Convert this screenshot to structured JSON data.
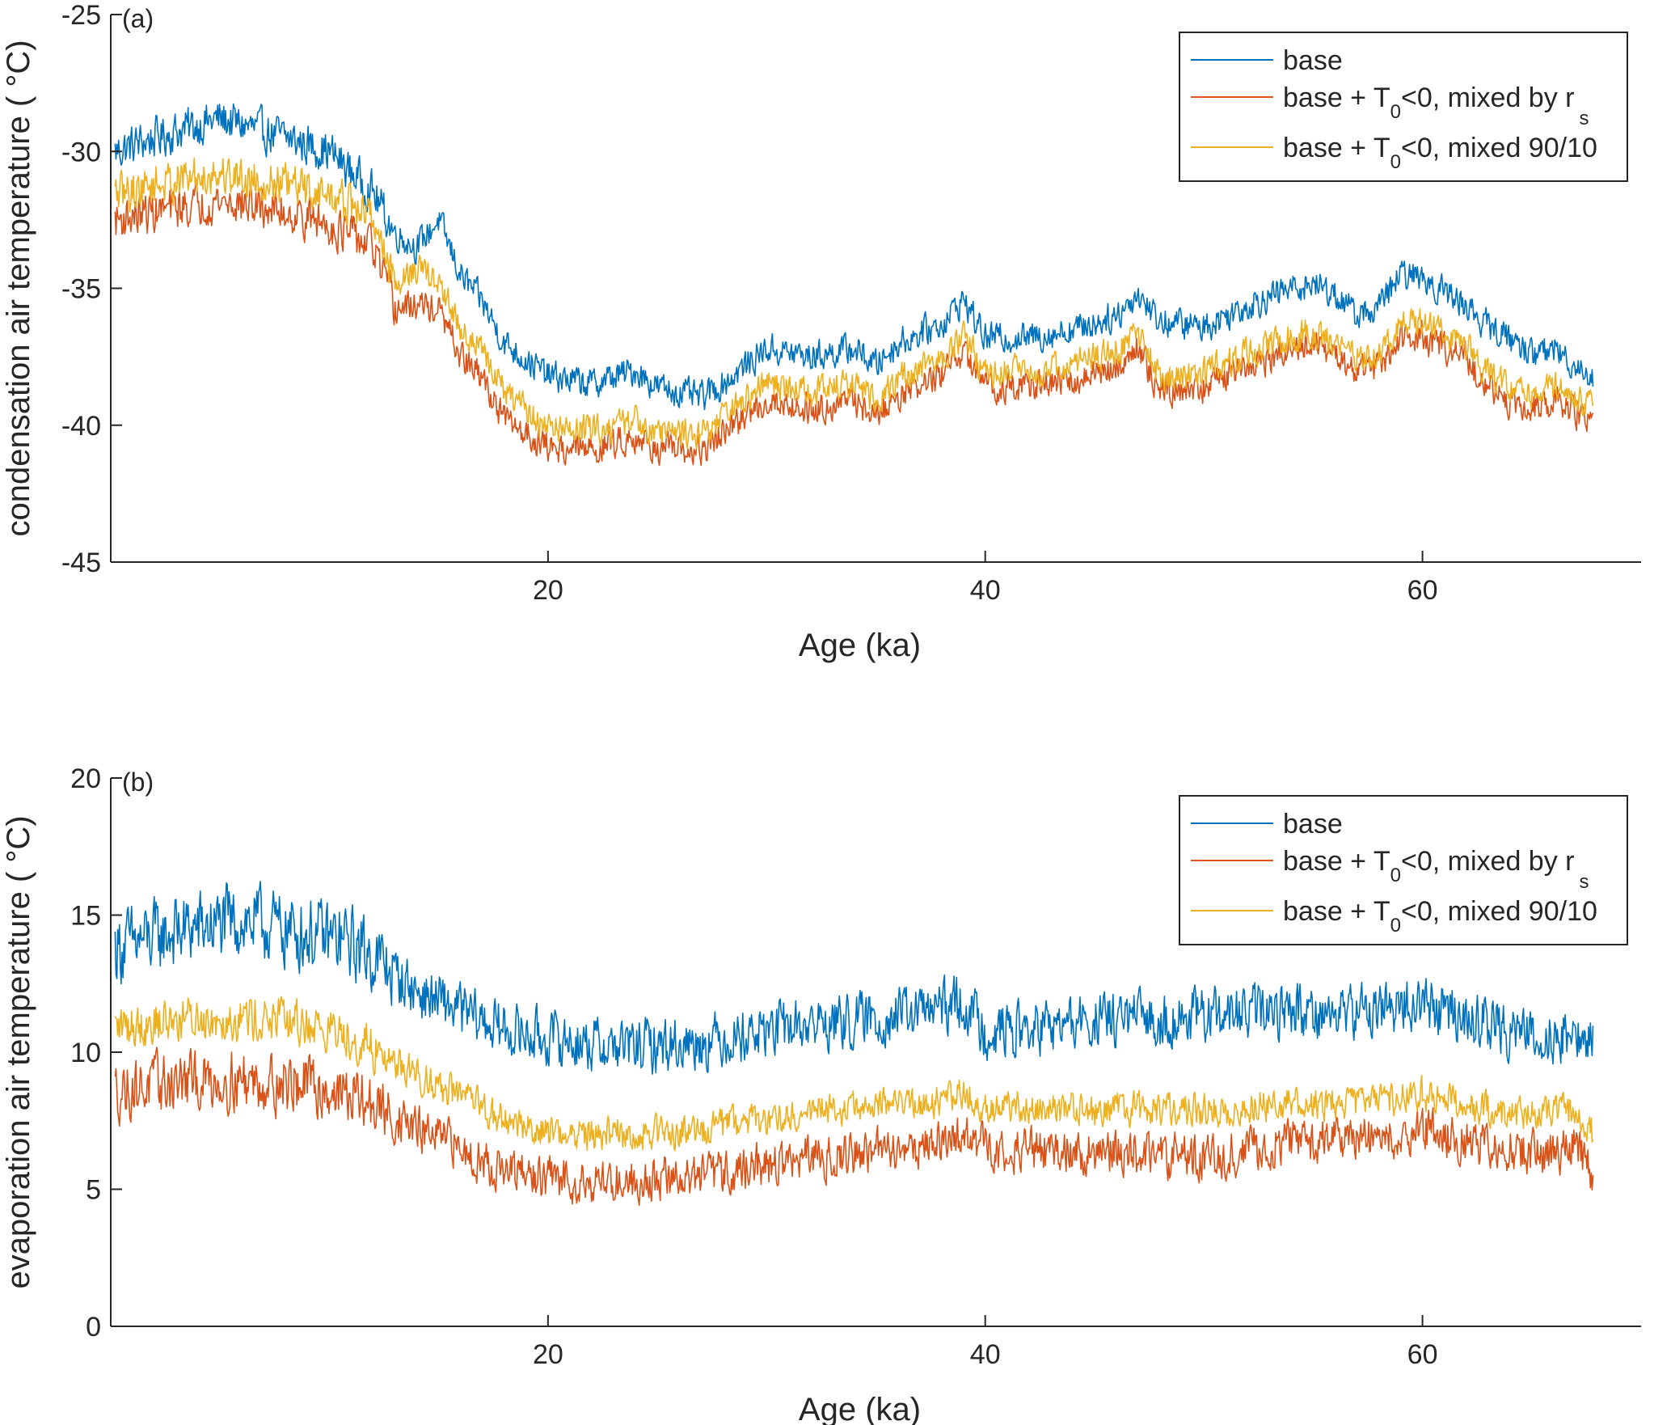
{
  "chart_data": [
    {
      "type": "line",
      "panel_label": "(a)",
      "xlabel": "Age (ka)",
      "ylabel": "condensation air temperature ( °C)",
      "xlim": [
        0,
        70
      ],
      "ylim": [
        -45,
        -25
      ],
      "xticks": [
        20,
        40,
        60
      ],
      "yticks": [
        -45,
        -40,
        -35,
        -30,
        -25
      ],
      "legend_position": "top-right",
      "legend": [
        {
          "text": "base",
          "subscript": "",
          "suffix": "",
          "subscript2": ""
        },
        {
          "text": "base + T",
          "subscript": "0",
          "suffix": "<0, mixed by r",
          "subscript2": "s"
        },
        {
          "text": "base + T",
          "subscript": "0",
          "suffix": "<0, mixed 90/10",
          "subscript2": ""
        }
      ],
      "noise": [
        0.9,
        0.9,
        0.9
      ],
      "series": [
        {
          "name": "base",
          "color": "#0072BD",
          "x": [
            0.2,
            2,
            5,
            8,
            10,
            12,
            13,
            14,
            15,
            16,
            17,
            18,
            20,
            22,
            24,
            25,
            27,
            28,
            30,
            32,
            34,
            35,
            36,
            38,
            39,
            40,
            42,
            44,
            46,
            47,
            48,
            50,
            52,
            54,
            55,
            56,
            57,
            58,
            59,
            60,
            62,
            63,
            64,
            65,
            66,
            67,
            67.8
          ],
          "y": [
            -30,
            -29.5,
            -28.8,
            -29.5,
            -30,
            -31.5,
            -33,
            -33.5,
            -32.5,
            -34.5,
            -35.5,
            -37,
            -38.2,
            -38.5,
            -38,
            -38.6,
            -39,
            -38.5,
            -37.2,
            -37.5,
            -37.2,
            -37.8,
            -37,
            -36.3,
            -35.4,
            -36.8,
            -36.8,
            -36.5,
            -36,
            -35.2,
            -36.2,
            -36.4,
            -35.6,
            -35,
            -34.8,
            -35.2,
            -36,
            -35.7,
            -34.5,
            -34.6,
            -35.6,
            -36.4,
            -36.8,
            -37.4,
            -37.2,
            -37.8,
            -38.2
          ]
        },
        {
          "name": "base + T0<0, mixed by rs",
          "color": "#D95319",
          "x": [
            0.2,
            2,
            5,
            8,
            10,
            12,
            13,
            14,
            15,
            16,
            17,
            18,
            20,
            22,
            24,
            25,
            27,
            28,
            30,
            32,
            34,
            35,
            36,
            38,
            39,
            40,
            42,
            44,
            46,
            47,
            48,
            50,
            52,
            54,
            55,
            56,
            57,
            58,
            59,
            60,
            62,
            63,
            64,
            65,
            66,
            67,
            67.8
          ],
          "y": [
            -32.5,
            -32.2,
            -31.8,
            -32.2,
            -32.7,
            -33.5,
            -35.8,
            -35.6,
            -35.8,
            -37.5,
            -38.3,
            -39.8,
            -40.8,
            -40.9,
            -40.4,
            -40.9,
            -41,
            -40.3,
            -39.1,
            -39.4,
            -39.1,
            -39.7,
            -38.9,
            -38.2,
            -37.3,
            -38.6,
            -38.6,
            -38.4,
            -37.9,
            -37.1,
            -38.8,
            -38.6,
            -37.9,
            -37.3,
            -37.1,
            -37.5,
            -38.1,
            -37.9,
            -36.8,
            -36.8,
            -37.6,
            -38.6,
            -39.2,
            -39.4,
            -39.1,
            -39.6,
            -39.9
          ]
        },
        {
          "name": "base + T0<0, mixed 90/10",
          "color": "#EDB120",
          "x": [
            0.2,
            2,
            5,
            8,
            10,
            12,
            13,
            14,
            15,
            16,
            17,
            18,
            20,
            22,
            24,
            25,
            27,
            28,
            30,
            32,
            34,
            35,
            36,
            38,
            39,
            40,
            42,
            44,
            46,
            47,
            48,
            50,
            52,
            54,
            55,
            56,
            57,
            58,
            59,
            60,
            62,
            63,
            64,
            65,
            66,
            67,
            67.8
          ],
          "y": [
            -31.6,
            -31.2,
            -30.8,
            -31.2,
            -31.6,
            -32.4,
            -34.8,
            -34.3,
            -34.8,
            -36.5,
            -37.3,
            -38.8,
            -40.1,
            -40.2,
            -39.8,
            -40.2,
            -40.3,
            -39.7,
            -38.5,
            -38.8,
            -38.5,
            -39.1,
            -38.3,
            -37.6,
            -36.8,
            -38,
            -38,
            -37.8,
            -37.3,
            -36.6,
            -38.3,
            -38.1,
            -37.4,
            -36.8,
            -36.6,
            -37,
            -37.6,
            -37.4,
            -36.3,
            -36.3,
            -37.1,
            -38.1,
            -38.7,
            -38.9,
            -38.6,
            -39.1,
            -39.4
          ]
        }
      ]
    },
    {
      "type": "line",
      "panel_label": "(b)",
      "xlabel": "Age (ka)",
      "ylabel": "evaporation air temperature ( °C)",
      "xlim": [
        0,
        70
      ],
      "ylim": [
        0,
        20
      ],
      "xticks": [
        20,
        40,
        60
      ],
      "yticks": [
        0,
        5,
        10,
        15,
        20
      ],
      "legend_position": "top-right",
      "legend": [
        {
          "text": "base",
          "subscript": "",
          "suffix": "",
          "subscript2": ""
        },
        {
          "text": "base + T",
          "subscript": "0",
          "suffix": "<0, mixed by r",
          "subscript2": "s"
        },
        {
          "text": "base + T",
          "subscript": "0",
          "suffix": "<0, mixed 90/10",
          "subscript2": ""
        }
      ],
      "noise": [
        1.6,
        1.3,
        1.0
      ],
      "series": [
        {
          "name": "base",
          "color": "#0072BD",
          "x": [
            0.2,
            3,
            6,
            9,
            11,
            12,
            14,
            16,
            18,
            20,
            22,
            24,
            26,
            28,
            30,
            32,
            35,
            38,
            39,
            40,
            42,
            44,
            46,
            48,
            50,
            52,
            54,
            56,
            58,
            60,
            62,
            64,
            66,
            67,
            67.8
          ],
          "y": [
            13.8,
            14.4,
            14.8,
            14.3,
            14,
            13.5,
            12.2,
            11.5,
            10.8,
            10.5,
            10.3,
            10.2,
            10.3,
            10.5,
            10.8,
            11,
            11.2,
            11.6,
            11.8,
            10.8,
            10.8,
            11,
            11.2,
            11.2,
            11.3,
            11.4,
            11.6,
            11.4,
            11.6,
            11.8,
            11.2,
            10.8,
            10.6,
            10.6,
            10.3
          ]
        },
        {
          "name": "base + T0<0, mixed by rs",
          "color": "#D95319",
          "x": [
            0.2,
            3,
            6,
            9,
            11,
            12,
            14,
            16,
            18,
            20,
            22,
            24,
            26,
            28,
            30,
            32,
            35,
            38,
            39,
            40,
            42,
            44,
            46,
            48,
            50,
            52,
            54,
            56,
            58,
            60,
            62,
            64,
            66,
            67,
            67.8
          ],
          "y": [
            8.6,
            8.9,
            9,
            8.8,
            8.4,
            8,
            7.2,
            6.5,
            5.6,
            5.4,
            5.3,
            5.3,
            5.4,
            5.6,
            5.9,
            6.1,
            6.4,
            6.7,
            7,
            6.5,
            6.4,
            6.4,
            6.3,
            6.2,
            6.2,
            6.4,
            6.8,
            6.8,
            6.9,
            7.2,
            6.7,
            6.4,
            6.3,
            6.6,
            5.4
          ]
        },
        {
          "name": "base + T0<0, mixed 90/10",
          "color": "#EDB120",
          "x": [
            0.2,
            3,
            6,
            9,
            11,
            12,
            14,
            16,
            18,
            20,
            22,
            24,
            26,
            28,
            30,
            32,
            35,
            38,
            39,
            40,
            42,
            44,
            46,
            48,
            50,
            52,
            54,
            56,
            58,
            60,
            62,
            64,
            66,
            67,
            67.8
          ],
          "y": [
            10.9,
            11.2,
            11.3,
            11,
            10.6,
            10.1,
            9.2,
            8.4,
            7.5,
            7.1,
            7,
            7,
            7.1,
            7.3,
            7.6,
            7.8,
            8,
            8.3,
            8.5,
            8,
            7.9,
            7.9,
            7.9,
            7.9,
            7.9,
            8,
            8.2,
            8.1,
            8.2,
            8.5,
            8,
            7.8,
            7.8,
            7.9,
            7
          ]
        }
      ]
    }
  ]
}
